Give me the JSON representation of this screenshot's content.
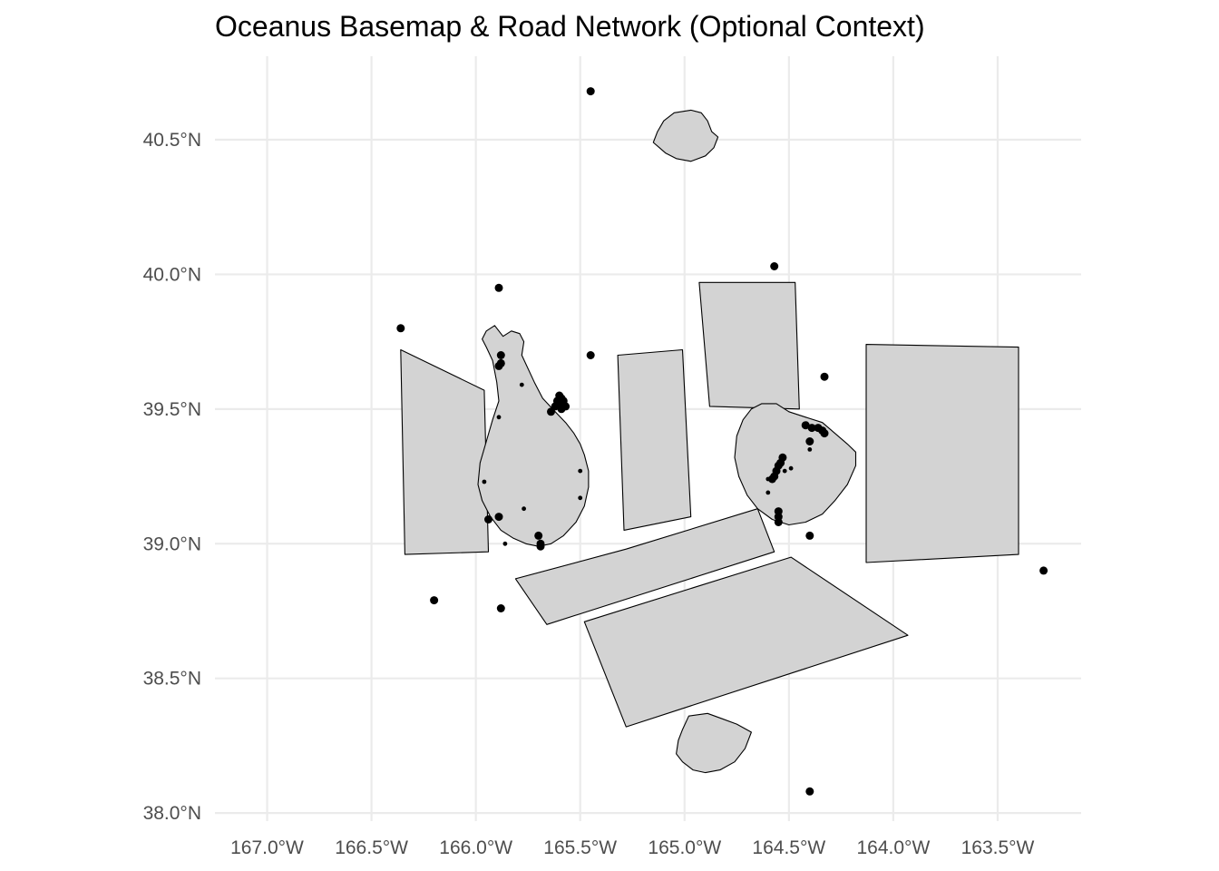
{
  "title": "Oceanus Basemap & Road Network (Optional Context)",
  "colors": {
    "land_fill": "#d3d3d3",
    "outline": "#000000",
    "grid": "#ebebeb",
    "points": "#000000",
    "tick_text": "#4d4d4d"
  },
  "axes": {
    "x_ticks": [
      {
        "value": -167.0,
        "label": "167.0°W"
      },
      {
        "value": -166.5,
        "label": "166.5°W"
      },
      {
        "value": -166.0,
        "label": "166.0°W"
      },
      {
        "value": -165.5,
        "label": "165.5°W"
      },
      {
        "value": -165.0,
        "label": "165.0°W"
      },
      {
        "value": -164.5,
        "label": "164.5°W"
      },
      {
        "value": -164.0,
        "label": "164.0°W"
      },
      {
        "value": -163.5,
        "label": "163.5°W"
      }
    ],
    "y_ticks": [
      {
        "value": 40.5,
        "label": "40.5°N"
      },
      {
        "value": 40.0,
        "label": "40.0°N"
      },
      {
        "value": 39.5,
        "label": "39.5°N"
      },
      {
        "value": 39.0,
        "label": "39.0°N"
      },
      {
        "value": 38.5,
        "label": "38.5°N"
      },
      {
        "value": 38.0,
        "label": "38.0°N"
      }
    ],
    "x_range": [
      -167.25,
      -163.1
    ],
    "y_range": [
      37.97,
      40.81
    ]
  },
  "polygons": [
    {
      "name": "northern-island",
      "coords": [
        [
          -164.84,
          40.51
        ],
        [
          -164.87,
          40.53
        ],
        [
          -164.89,
          40.57
        ],
        [
          -164.92,
          40.6
        ],
        [
          -164.97,
          40.61
        ],
        [
          -165.05,
          40.6
        ],
        [
          -165.1,
          40.57
        ],
        [
          -165.13,
          40.53
        ],
        [
          -165.15,
          40.49
        ],
        [
          -165.12,
          40.47
        ],
        [
          -165.09,
          40.45
        ],
        [
          -165.04,
          40.43
        ],
        [
          -164.97,
          40.42
        ],
        [
          -164.9,
          40.44
        ],
        [
          -164.86,
          40.47
        ]
      ]
    },
    {
      "name": "western-block",
      "coords": [
        [
          -166.36,
          39.72
        ],
        [
          -165.96,
          39.57
        ],
        [
          -165.94,
          38.97
        ],
        [
          -166.34,
          38.96
        ]
      ]
    },
    {
      "name": "main-island",
      "coords": [
        [
          -165.91,
          39.81
        ],
        [
          -165.87,
          39.77
        ],
        [
          -165.83,
          39.79
        ],
        [
          -165.79,
          39.78
        ],
        [
          -165.77,
          39.75
        ],
        [
          -165.78,
          39.7
        ],
        [
          -165.72,
          39.6
        ],
        [
          -165.68,
          39.54
        ],
        [
          -165.62,
          39.49
        ],
        [
          -165.57,
          39.45
        ],
        [
          -165.53,
          39.41
        ],
        [
          -165.5,
          39.37
        ],
        [
          -165.48,
          39.33
        ],
        [
          -165.46,
          39.27
        ],
        [
          -165.46,
          39.21
        ],
        [
          -165.48,
          39.14
        ],
        [
          -165.52,
          39.08
        ],
        [
          -165.58,
          39.03
        ],
        [
          -165.64,
          39.0
        ],
        [
          -165.7,
          38.99
        ],
        [
          -165.76,
          39.0
        ],
        [
          -165.82,
          39.02
        ],
        [
          -165.88,
          39.05
        ],
        [
          -165.93,
          39.1
        ],
        [
          -165.97,
          39.16
        ],
        [
          -165.99,
          39.22
        ],
        [
          -165.98,
          39.3
        ],
        [
          -165.95,
          39.38
        ],
        [
          -165.92,
          39.46
        ],
        [
          -165.89,
          39.53
        ],
        [
          -165.9,
          39.6
        ],
        [
          -165.92,
          39.68
        ],
        [
          -165.95,
          39.73
        ],
        [
          -165.97,
          39.76
        ],
        [
          -165.95,
          39.79
        ]
      ]
    },
    {
      "name": "central-block",
      "coords": [
        [
          -165.32,
          39.7
        ],
        [
          -165.01,
          39.72
        ],
        [
          -164.97,
          39.1
        ],
        [
          -165.29,
          39.05
        ]
      ]
    },
    {
      "name": "north-center-block",
      "coords": [
        [
          -164.93,
          39.97
        ],
        [
          -164.47,
          39.97
        ],
        [
          -164.45,
          39.5
        ],
        [
          -164.88,
          39.51
        ]
      ]
    },
    {
      "name": "eastern-island",
      "coords": [
        [
          -164.63,
          39.52
        ],
        [
          -164.56,
          39.52
        ],
        [
          -164.5,
          39.49
        ],
        [
          -164.42,
          39.47
        ],
        [
          -164.34,
          39.45
        ],
        [
          -164.28,
          39.41
        ],
        [
          -164.22,
          39.37
        ],
        [
          -164.18,
          39.34
        ],
        [
          -164.18,
          39.29
        ],
        [
          -164.22,
          39.22
        ],
        [
          -164.28,
          39.16
        ],
        [
          -164.34,
          39.11
        ],
        [
          -164.42,
          39.08
        ],
        [
          -164.5,
          39.07
        ],
        [
          -164.58,
          39.09
        ],
        [
          -164.65,
          39.13
        ],
        [
          -164.7,
          39.18
        ],
        [
          -164.74,
          39.25
        ],
        [
          -164.76,
          39.32
        ],
        [
          -164.75,
          39.4
        ],
        [
          -164.72,
          39.46
        ],
        [
          -164.68,
          39.5
        ]
      ]
    },
    {
      "name": "eastern-block",
      "coords": [
        [
          -164.13,
          39.74
        ],
        [
          -163.4,
          39.73
        ],
        [
          -163.4,
          38.96
        ],
        [
          -164.13,
          38.93
        ]
      ]
    },
    {
      "name": "middle-strip",
      "coords": [
        [
          -165.81,
          38.87
        ],
        [
          -165.28,
          38.98
        ],
        [
          -164.65,
          39.13
        ],
        [
          -164.57,
          38.97
        ],
        [
          -165.66,
          38.7
        ]
      ]
    },
    {
      "name": "southern-block",
      "coords": [
        [
          -165.48,
          38.71
        ],
        [
          -164.49,
          38.95
        ],
        [
          -163.93,
          38.66
        ],
        [
          -165.28,
          38.32
        ]
      ]
    },
    {
      "name": "southern-island",
      "coords": [
        [
          -164.98,
          38.36
        ],
        [
          -164.89,
          38.37
        ],
        [
          -164.82,
          38.35
        ],
        [
          -164.75,
          38.33
        ],
        [
          -164.68,
          38.3
        ],
        [
          -164.71,
          38.24
        ],
        [
          -164.76,
          38.19
        ],
        [
          -164.83,
          38.16
        ],
        [
          -164.9,
          38.15
        ],
        [
          -164.96,
          38.16
        ],
        [
          -165.01,
          38.19
        ],
        [
          -165.04,
          38.22
        ],
        [
          -165.03,
          38.27
        ],
        [
          -165.01,
          38.31
        ]
      ]
    }
  ],
  "points": [
    [
      -165.45,
      40.68,
      1
    ],
    [
      -164.57,
      40.03,
      1
    ],
    [
      -165.89,
      39.95,
      1
    ],
    [
      -166.36,
      39.8,
      1
    ],
    [
      -165.88,
      39.7,
      1
    ],
    [
      -165.45,
      39.7,
      1
    ],
    [
      -165.88,
      39.67,
      1
    ],
    [
      -165.89,
      39.66,
      1
    ],
    [
      -164.33,
      39.62,
      1
    ],
    [
      -165.78,
      39.59,
      0
    ],
    [
      -165.6,
      39.55,
      1
    ],
    [
      -165.59,
      39.54,
      1
    ],
    [
      -165.61,
      39.53,
      1
    ],
    [
      -165.58,
      39.53,
      1
    ],
    [
      -165.6,
      39.52,
      1
    ],
    [
      -165.57,
      39.51,
      1
    ],
    [
      -165.62,
      39.51,
      1
    ],
    [
      -165.59,
      39.5,
      1
    ],
    [
      -165.64,
      39.49,
      1
    ],
    [
      -165.89,
      39.47,
      0
    ],
    [
      -164.42,
      39.44,
      1
    ],
    [
      -164.39,
      39.43,
      1
    ],
    [
      -164.36,
      39.43,
      1
    ],
    [
      -164.34,
      39.42,
      1
    ],
    [
      -164.33,
      39.41,
      1
    ],
    [
      -164.4,
      39.38,
      1
    ],
    [
      -164.4,
      39.35,
      0
    ],
    [
      -164.53,
      39.32,
      1
    ],
    [
      -164.54,
      39.3,
      1
    ],
    [
      -164.55,
      39.29,
      1
    ],
    [
      -164.56,
      39.27,
      1
    ],
    [
      -164.57,
      39.25,
      1
    ],
    [
      -164.58,
      39.24,
      1
    ],
    [
      -164.6,
      39.24,
      0
    ],
    [
      -164.49,
      39.28,
      0
    ],
    [
      -164.52,
      39.27,
      0
    ],
    [
      -164.6,
      39.19,
      0
    ],
    [
      -165.5,
      39.27,
      0
    ],
    [
      -165.96,
      39.23,
      0
    ],
    [
      -165.5,
      39.17,
      0
    ],
    [
      -165.77,
      39.13,
      0
    ],
    [
      -164.55,
      39.12,
      1
    ],
    [
      -164.55,
      39.1,
      1
    ],
    [
      -164.55,
      39.08,
      1
    ],
    [
      -165.94,
      39.09,
      1
    ],
    [
      -165.89,
      39.1,
      1
    ],
    [
      -165.7,
      39.03,
      1
    ],
    [
      -165.69,
      39.0,
      1
    ],
    [
      -165.69,
      38.99,
      1
    ],
    [
      -165.86,
      39.0,
      0
    ],
    [
      -164.4,
      39.03,
      1
    ],
    [
      -163.28,
      38.9,
      1
    ],
    [
      -166.2,
      38.79,
      1
    ],
    [
      -165.88,
      38.76,
      1
    ],
    [
      -164.4,
      38.08,
      1
    ]
  ]
}
